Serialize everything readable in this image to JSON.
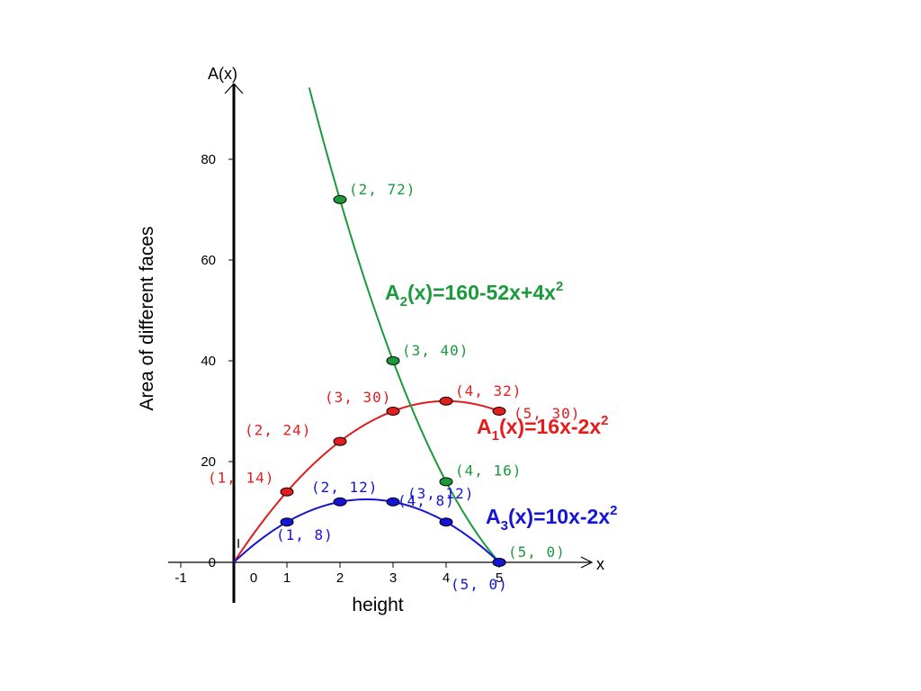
{
  "chart_data": {
    "type": "line",
    "title": "",
    "xlabel": "height",
    "ylabel": "Area of different faces",
    "y_axis_top_label": "A(x)",
    "x_axis_end_label": "x",
    "xlim": [
      -1.2,
      6.9
    ],
    "ylim": [
      -8,
      94
    ],
    "x_ticks": [
      -1,
      0,
      1,
      2,
      3,
      4,
      5
    ],
    "y_ticks": [
      0,
      20,
      40,
      60,
      80
    ],
    "small_mark": "I",
    "grid": false,
    "series": [
      {
        "formula_name": "A",
        "formula_sub": "1",
        "formula_rhs": "(x)=16x-2x",
        "formula_exp": "2",
        "color": "#e31c1c",
        "x": [
          0,
          1,
          2,
          3,
          4,
          5
        ],
        "y": [
          0,
          14,
          24,
          30,
          32,
          30
        ],
        "labels": [
          "",
          "(1, 14)",
          "(2, 24)",
          "(3, 30)",
          "(4, 32)",
          "(5, 30)"
        ]
      },
      {
        "formula_name": "A",
        "formula_sub": "2",
        "formula_rhs": "(x)=160-52x+4x",
        "formula_exp": "2",
        "color": "#1a9a3a",
        "x_range": [
          1.42,
          5.0
        ],
        "x": [
          2,
          3,
          4,
          5
        ],
        "y": [
          72,
          40,
          16,
          0
        ],
        "labels": [
          "(2, 72)",
          "(3, 40)",
          "(4, 16)",
          "(5, 0)"
        ]
      },
      {
        "formula_name": "A",
        "formula_sub": "3",
        "formula_rhs": "(x)=10x-2x",
        "formula_exp": "2",
        "color": "#1414d4",
        "x": [
          0,
          1,
          2,
          3,
          4,
          5
        ],
        "y": [
          0,
          8,
          12,
          12,
          8,
          0
        ],
        "labels": [
          "",
          "(1, 8)",
          "(2, 12)",
          "(3, 12)",
          "(4, 8)",
          "(5, 0)"
        ]
      }
    ]
  }
}
